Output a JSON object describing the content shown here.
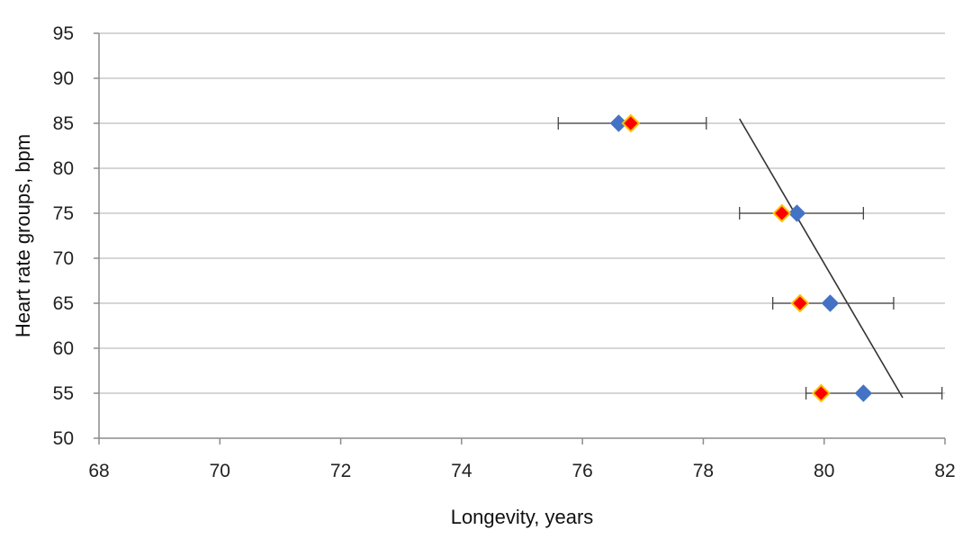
{
  "chart_data": {
    "type": "scatter",
    "title": "",
    "xlabel": "Longevity, years",
    "ylabel": "Heart rate groups, bpm",
    "xlim": [
      68,
      82
    ],
    "ylim": [
      50,
      95
    ],
    "xticks": [
      68,
      70,
      72,
      74,
      76,
      78,
      80,
      82
    ],
    "yticks": [
      50,
      55,
      60,
      65,
      70,
      75,
      80,
      85,
      90,
      95
    ],
    "grid": "horizontal",
    "legend": "none",
    "series": [
      {
        "color": "#4472C4",
        "marker": "diamond",
        "points": [
          {
            "x": 76.6,
            "y": 85
          },
          {
            "x": 79.55,
            "y": 75
          },
          {
            "x": 80.1,
            "y": 65
          },
          {
            "x": 80.65,
            "y": 55
          }
        ]
      },
      {
        "color": "#FF0000",
        "edge_color": "#FFC000",
        "marker": "diamond",
        "points": [
          {
            "x": 76.8,
            "y": 85,
            "err_low": 75.6,
            "err_high": 78.05
          },
          {
            "x": 79.3,
            "y": 75,
            "err_low": 78.6,
            "err_high": 80.65
          },
          {
            "x": 79.6,
            "y": 65,
            "err_low": 79.15,
            "err_high": 81.15
          },
          {
            "x": 79.95,
            "y": 55,
            "err_low": 79.7,
            "err_high": 81.95
          }
        ]
      }
    ],
    "trendline": {
      "color": "#333333",
      "points": [
        {
          "x": 78.6,
          "y": 85.5
        },
        {
          "x": 81.3,
          "y": 54.5
        }
      ]
    }
  }
}
